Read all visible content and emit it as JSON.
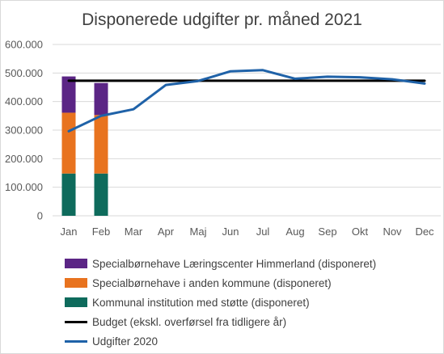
{
  "chart_data": {
    "type": "bar",
    "title": "Disponerede udgifter pr. måned 2021",
    "categories": [
      "Jan",
      "Feb",
      "Mar",
      "Apr",
      "Maj",
      "Jun",
      "Jul",
      "Aug",
      "Sep",
      "Okt",
      "Nov",
      "Dec"
    ],
    "ylim": [
      0,
      600000
    ],
    "y_ticks": [
      0,
      100000,
      200000,
      300000,
      400000,
      500000,
      600000
    ],
    "y_tick_labels": [
      "0",
      "100.000",
      "200.000",
      "300.000",
      "400.000",
      "500.000",
      "600.000"
    ],
    "grid": true,
    "legend_position": "bottom",
    "stacked_series": [
      {
        "name": "Kommunal institution med støtte (disponeret)",
        "color": "#0e6b5c",
        "values": [
          148000,
          148000,
          null,
          null,
          null,
          null,
          null,
          null,
          null,
          null,
          null,
          null
        ]
      },
      {
        "name": "Specialbørnehave i anden kommune (disponeret)",
        "color": "#e8731f",
        "values": [
          213000,
          205000,
          null,
          null,
          null,
          null,
          null,
          null,
          null,
          null,
          null,
          null
        ]
      },
      {
        "name": "Specialbørnehave Læringscenter Himmerland (disponeret)",
        "color": "#5b2585",
        "values": [
          127000,
          112000,
          null,
          null,
          null,
          null,
          null,
          null,
          null,
          null,
          null,
          null
        ]
      }
    ],
    "line_series": [
      {
        "name": "Budget (ekskl. overførsel fra tidligere år)",
        "color": "#000000",
        "values": [
          473000,
          473000,
          473000,
          473000,
          473000,
          473000,
          473000,
          473000,
          473000,
          473000,
          473000,
          473000
        ]
      },
      {
        "name": "Udgifter 2020",
        "color": "#1f62a8",
        "values": [
          296000,
          350000,
          373000,
          458000,
          472000,
          506000,
          510000,
          480000,
          487000,
          485000,
          478000,
          463000
        ]
      }
    ],
    "legend_order": [
      "Specialbørnehave Læringscenter Himmerland (disponeret)",
      "Specialbørnehave i anden kommune (disponeret)",
      "Kommunal institution med støtte (disponeret)",
      "Budget (ekskl. overførsel fra tidligere år)",
      "Udgifter 2020"
    ]
  }
}
